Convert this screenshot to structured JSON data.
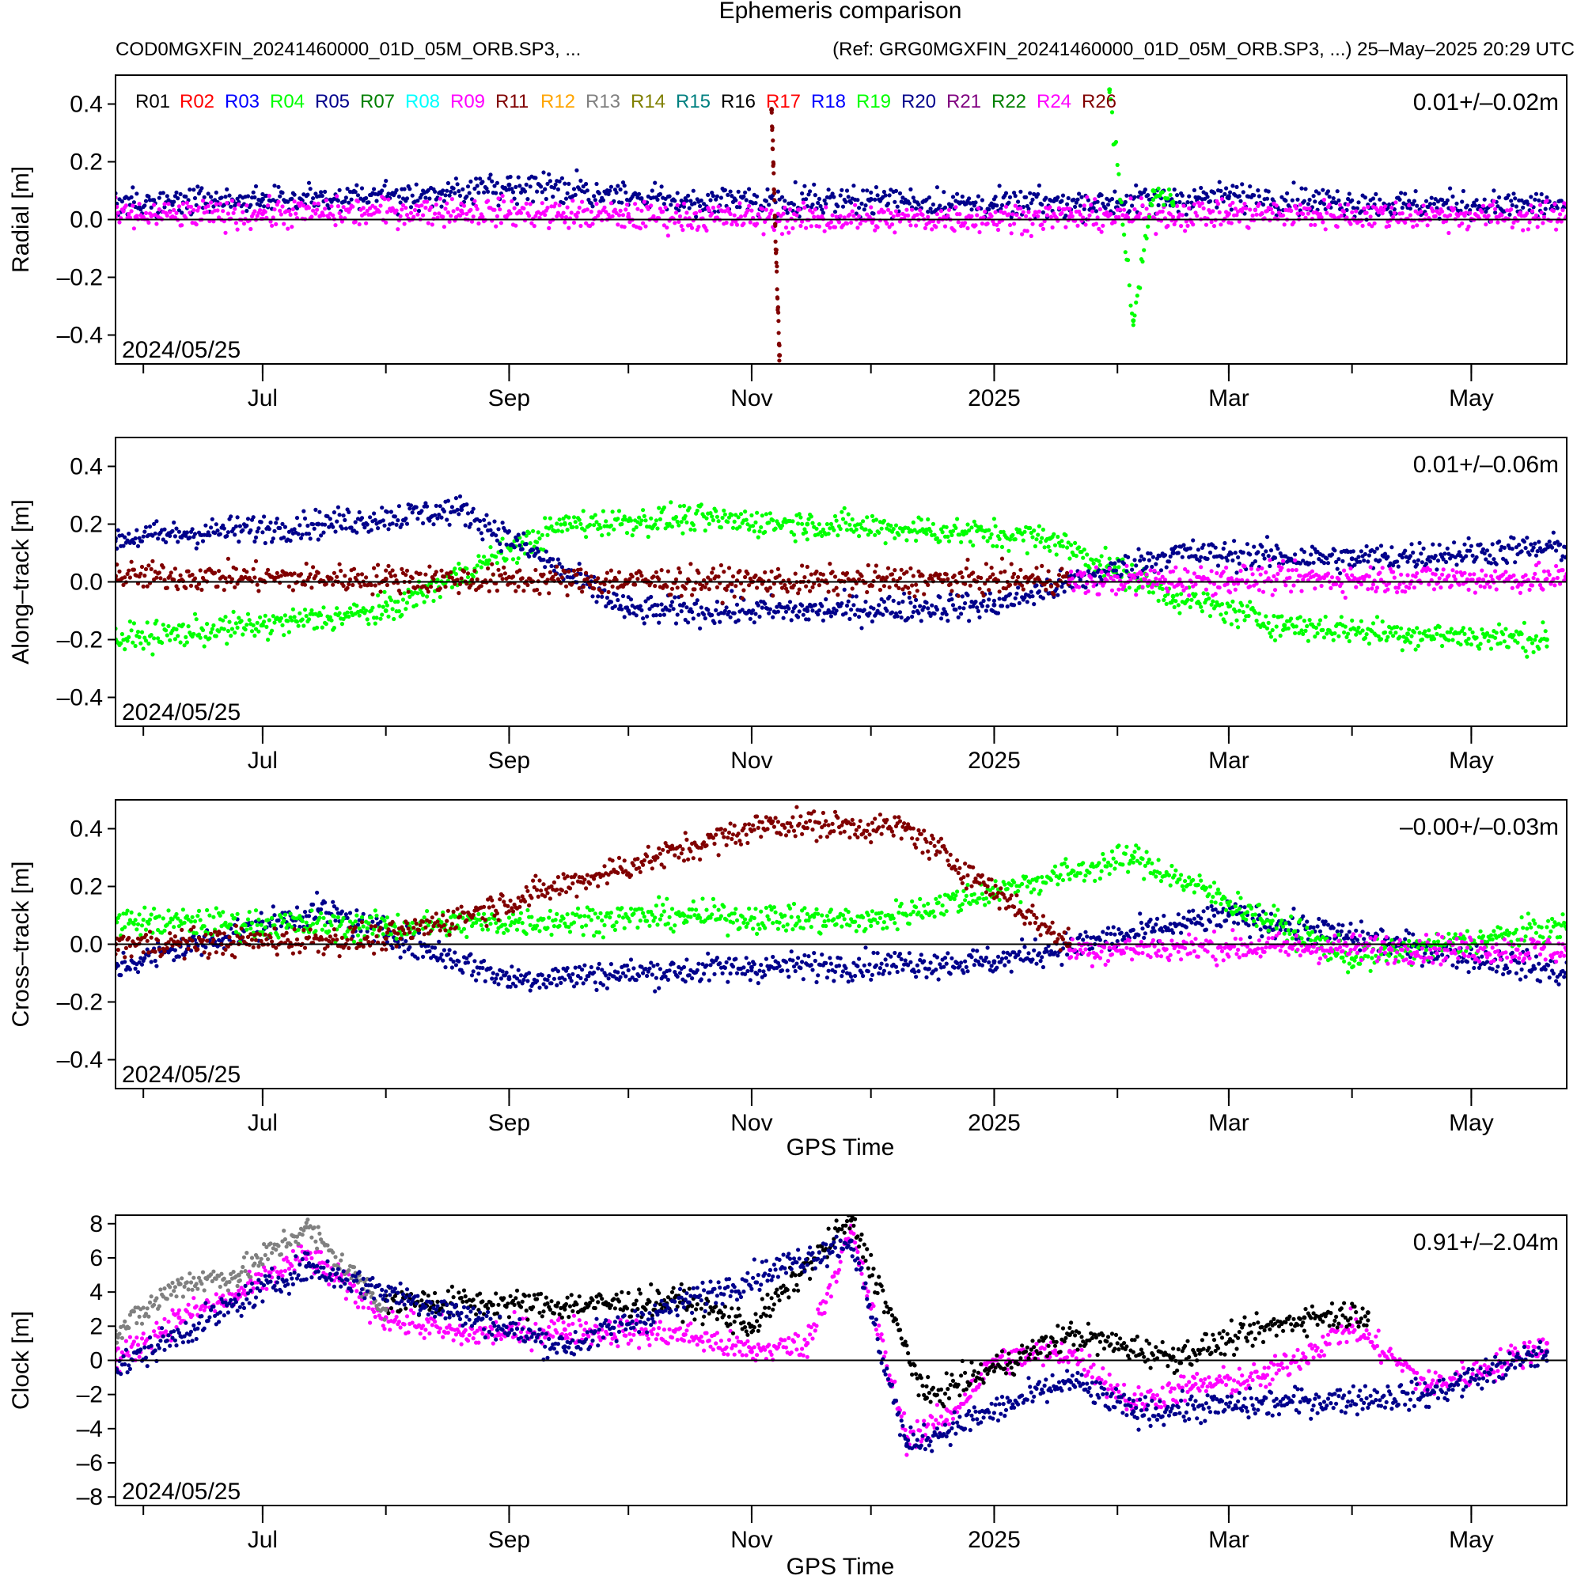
{
  "page": {
    "title": "Ephemeris comparison",
    "subtitle_left": "COD0MGXFIN_20241460000_01D_05M_ORB.SP3, ...",
    "subtitle_right": "(Ref: GRG0MGXFIN_20241460000_01D_05M_ORB.SP3, ...) 25–May–2025 20:29 UTC"
  },
  "colors": {
    "R01": "#000000",
    "R02": "#ff0000",
    "R03": "#0000ff",
    "R04": "#00ff00",
    "R05": "#00008b",
    "R07": "#008000",
    "R08": "#00ffff",
    "R09": "#ff00ff",
    "R11": "#800000",
    "R12": "#ffa500",
    "R13": "#808080",
    "R14": "#808000",
    "R15": "#008080",
    "R16": "#000000",
    "R17": "#ff0000",
    "R18": "#0000ff",
    "R19": "#00ff00",
    "R20": "#00008b",
    "R21": "#800080",
    "R22": "#008000",
    "R24": "#ff00ff",
    "R26": "#800000"
  },
  "chart_data": [
    {
      "type": "scatter",
      "ylabel": "Radial [m]",
      "xlabel": "",
      "stats": "0.01+/–0.02m",
      "start_label": "2024/05/25",
      "ylim": [
        -0.5,
        0.5
      ],
      "yticks": [
        0.4,
        0.2,
        0.0,
        -0.2,
        -0.4
      ],
      "ytick_labels": [
        "0.4",
        "0.2",
        "0.0",
        "–0.2",
        "–0.4"
      ],
      "xlim": [
        "2024-05-25",
        "2025-05-25"
      ],
      "x_major_ticks": [
        "2024-07-01",
        "2024-09-01",
        "2024-11-01",
        "2025-01-01",
        "2025-03-01",
        "2025-05-01"
      ],
      "x_tick_labels": [
        "Jul",
        "Sep",
        "Nov",
        "2025",
        "Mar",
        "May"
      ],
      "grid": false,
      "legend": {
        "position": "top-left",
        "entries": [
          "R01",
          "R02",
          "R03",
          "R04",
          "R05",
          "R07",
          "R08",
          "R09",
          "R11",
          "R12",
          "R13",
          "R14",
          "R15",
          "R16",
          "R17",
          "R18",
          "R19",
          "R20",
          "R21",
          "R22",
          "R24",
          "R26"
        ]
      },
      "series": [
        {
          "name": "R05",
          "x": [
            "2024-05-25",
            "2024-07-01",
            "2024-08-15",
            "2024-09-01",
            "2024-10-15",
            "2024-12-01",
            "2025-01-01",
            "2025-02-01",
            "2025-03-01",
            "2025-04-15",
            "2025-05-25"
          ],
          "y": [
            0.05,
            0.07,
            0.09,
            0.12,
            0.06,
            0.07,
            0.05,
            0.06,
            0.08,
            0.05,
            0.05
          ]
        },
        {
          "name": "R09",
          "x": [
            "2024-05-25",
            "2024-07-01",
            "2024-08-20",
            "2024-10-01",
            "2024-12-01",
            "2025-01-20",
            "2025-03-01",
            "2025-05-25"
          ],
          "y": [
            0.01,
            0.02,
            0.03,
            0.01,
            0.0,
            0.01,
            0.02,
            0.01
          ]
        },
        {
          "name": "R04",
          "x": [
            "2025-01-30",
            "2025-02-05",
            "2025-02-10",
            "2025-02-15"
          ],
          "y": [
            0.45,
            -0.35,
            0.1,
            0.05
          ]
        },
        {
          "name": "R11",
          "x": [
            "2024-11-06",
            "2024-11-08"
          ],
          "y": [
            0.38,
            -0.47
          ]
        }
      ]
    },
    {
      "type": "scatter",
      "ylabel": "Along–track [m]",
      "xlabel": "",
      "stats": "0.01+/–0.06m",
      "start_label": "2024/05/25",
      "ylim": [
        -0.5,
        0.5
      ],
      "yticks": [
        0.4,
        0.2,
        0.0,
        -0.2,
        -0.4
      ],
      "ytick_labels": [
        "0.4",
        "0.2",
        "0.0",
        "–0.2",
        "–0.4"
      ],
      "xlim": [
        "2024-05-25",
        "2025-05-25"
      ],
      "x_major_ticks": [
        "2024-07-01",
        "2024-09-01",
        "2024-11-01",
        "2025-01-01",
        "2025-03-01",
        "2025-05-01"
      ],
      "x_tick_labels": [
        "Jul",
        "Sep",
        "Nov",
        "2025",
        "Mar",
        "May"
      ],
      "grid": false,
      "series": [
        {
          "name": "R04",
          "x": [
            "2024-05-25",
            "2024-07-01",
            "2024-08-01",
            "2024-09-15",
            "2024-10-15",
            "2024-11-15",
            "2024-12-15",
            "2025-01-15",
            "2025-02-15",
            "2025-03-15",
            "2025-04-15",
            "2025-05-20"
          ],
          "y": [
            -0.2,
            -0.15,
            -0.1,
            0.2,
            0.22,
            0.2,
            0.18,
            0.15,
            -0.05,
            -0.15,
            -0.18,
            -0.2
          ]
        },
        {
          "name": "R05",
          "x": [
            "2024-05-25",
            "2024-07-15",
            "2024-08-20",
            "2024-10-01",
            "2024-11-15",
            "2025-01-01",
            "2025-02-15",
            "2025-04-01",
            "2025-05-25"
          ],
          "y": [
            0.15,
            0.2,
            0.25,
            -0.1,
            -0.1,
            -0.08,
            0.1,
            0.08,
            0.12
          ]
        },
        {
          "name": "R11",
          "x": [
            "2024-05-25",
            "2024-08-01",
            "2024-11-01",
            "2025-01-20"
          ],
          "y": [
            0.02,
            0.01,
            0.0,
            0.01
          ]
        },
        {
          "name": "R09",
          "x": [
            "2025-01-20",
            "2025-03-01",
            "2025-05-25"
          ],
          "y": [
            0.0,
            0.01,
            0.01
          ]
        }
      ]
    },
    {
      "type": "scatter",
      "ylabel": "Cross–track [m]",
      "xlabel": "GPS Time",
      "stats": "–0.00+/–0.03m",
      "start_label": "2024/05/25",
      "ylim": [
        -0.5,
        0.5
      ],
      "yticks": [
        0.4,
        0.2,
        0.0,
        -0.2,
        -0.4
      ],
      "ytick_labels": [
        "0.4",
        "0.2",
        "0.0",
        "–0.2",
        "–0.4"
      ],
      "xlim": [
        "2024-05-25",
        "2025-05-25"
      ],
      "x_major_ticks": [
        "2024-07-01",
        "2024-09-01",
        "2024-11-01",
        "2025-01-01",
        "2025-03-01",
        "2025-05-01"
      ],
      "x_tick_labels": [
        "Jul",
        "Sep",
        "Nov",
        "2025",
        "Mar",
        "May"
      ],
      "grid": false,
      "series": [
        {
          "name": "R05",
          "x": [
            "2024-05-25",
            "2024-07-15",
            "2024-09-01",
            "2024-11-01",
            "2025-01-01",
            "2025-03-01",
            "2025-05-25"
          ],
          "y": [
            -0.08,
            0.12,
            -0.12,
            -0.08,
            -0.06,
            0.1,
            -0.1
          ]
        },
        {
          "name": "R04",
          "x": [
            "2024-05-25",
            "2024-08-01",
            "2024-10-15",
            "2024-12-01",
            "2025-02-05",
            "2025-04-01",
            "2025-05-25"
          ],
          "y": [
            0.08,
            0.06,
            0.1,
            0.08,
            0.3,
            -0.05,
            0.06
          ]
        },
        {
          "name": "R11",
          "x": [
            "2024-05-25",
            "2024-08-01",
            "2024-11-06",
            "2024-12-10",
            "2025-01-20"
          ],
          "y": [
            0.0,
            0.02,
            0.42,
            0.4,
            0.0
          ]
        },
        {
          "name": "R09",
          "x": [
            "2025-01-20",
            "2025-03-01",
            "2025-05-25"
          ],
          "y": [
            -0.02,
            -0.01,
            -0.02
          ]
        }
      ]
    },
    {
      "type": "scatter",
      "ylabel": "Clock [m]",
      "xlabel": "GPS Time",
      "stats": "0.91+/–2.04m",
      "start_label": "2024/05/25",
      "ylim": [
        -8.5,
        8.5
      ],
      "yticks": [
        8,
        6,
        4,
        2,
        0,
        -2,
        -4,
        -6,
        -8
      ],
      "ytick_labels": [
        "8",
        "6",
        "4",
        "2",
        "0",
        "–2",
        "–4",
        "–6",
        "–8"
      ],
      "xlim": [
        "2024-05-25",
        "2025-05-25"
      ],
      "x_major_ticks": [
        "2024-07-01",
        "2024-09-01",
        "2024-11-01",
        "2025-01-01",
        "2025-03-01",
        "2025-05-01"
      ],
      "x_tick_labels": [
        "Jul",
        "Sep",
        "Nov",
        "2025",
        "Mar",
        "May"
      ],
      "grid": false,
      "series": [
        {
          "name": "R09",
          "x": [
            "2024-05-25",
            "2024-06-10",
            "2024-06-25",
            "2024-07-12",
            "2024-08-01",
            "2024-08-20",
            "2024-09-15",
            "2024-10-15",
            "2024-11-01",
            "2024-11-15",
            "2024-11-26",
            "2024-12-10",
            "2024-12-20",
            "2025-01-01",
            "2025-01-20",
            "2025-02-05",
            "2025-02-20",
            "2025-03-10",
            "2025-04-01",
            "2025-04-20",
            "2025-05-05",
            "2025-05-20"
          ],
          "y": [
            0.0,
            2.5,
            3.8,
            6.2,
            2.5,
            1.5,
            1.8,
            1.5,
            0.5,
            1.0,
            7.5,
            -4.5,
            -3.5,
            0.0,
            0.5,
            -2.5,
            -1.5,
            -1.0,
            2.0,
            -1.5,
            -0.5,
            1.0
          ]
        },
        {
          "name": "R01",
          "x": [
            "2024-08-01",
            "2024-09-15",
            "2024-10-15",
            "2024-11-01",
            "2024-11-26",
            "2024-12-15",
            "2025-01-20",
            "2025-02-15",
            "2025-03-20",
            "2025-04-05"
          ],
          "y": [
            3.5,
            3.2,
            3.5,
            2.0,
            8.2,
            -2.2,
            1.5,
            0.2,
            2.5,
            2.8
          ]
        },
        {
          "name": "R13",
          "x": [
            "2024-05-25",
            "2024-06-10",
            "2024-06-25",
            "2024-07-12",
            "2024-08-01"
          ],
          "y": [
            1.5,
            4.5,
            5.0,
            7.8,
            3.0
          ]
        },
        {
          "name": "R05",
          "x": [
            "2024-05-25",
            "2024-07-12",
            "2024-09-15",
            "2024-11-26",
            "2024-12-10",
            "2025-01-20",
            "2025-02-05",
            "2025-04-20",
            "2025-05-20"
          ],
          "y": [
            -0.5,
            5.5,
            0.8,
            7.0,
            -5.0,
            -1.2,
            -3.0,
            -2.0,
            0.5
          ]
        }
      ]
    }
  ]
}
